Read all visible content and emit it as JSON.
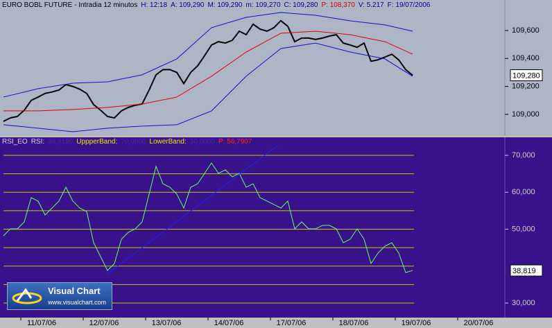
{
  "chart_data": [
    {
      "type": "line",
      "header": [
        "EURO BOBL FUTURE - Intradia 12 minutos",
        "H: 12:18",
        "A: 109,290",
        "M: 109,290",
        "m: 109,270",
        "C: 109,280",
        "P: 108,370",
        "V: 5.217",
        "F: 19/07/2006"
      ],
      "header_colors": [
        "#000000",
        "#00008b",
        "#00008b",
        "#00008b",
        "#00008b",
        "#00008b",
        "#d00000",
        "#00008b",
        "#00008b"
      ],
      "background": "#aeb6c6",
      "xlim": [
        -0.5,
        72.3
      ],
      "ylim": [
        108.846,
        109.818
      ],
      "yticks": [
        {
          "value": 109.0,
          "label": "109,000"
        },
        {
          "value": 109.2,
          "label": "109,200"
        },
        {
          "value": 109.4,
          "label": "109,400"
        },
        {
          "value": 109.6,
          "label": "109,600"
        }
      ],
      "last_label": {
        "value": 109.28,
        "label": "109,280"
      },
      "series": [
        {
          "color": "#000000",
          "width": 2,
          "x": [
            0,
            1,
            2,
            3,
            4,
            5,
            6,
            7,
            8,
            9,
            10,
            11,
            12,
            13,
            14,
            15,
            16,
            17,
            18,
            19,
            20,
            21,
            22,
            23,
            24,
            25,
            26,
            27,
            28,
            29,
            30,
            31,
            32,
            33,
            34,
            35,
            36,
            37,
            38,
            39,
            40,
            41,
            42,
            43,
            44,
            45,
            46,
            47,
            48,
            49,
            50,
            51,
            52,
            53,
            54,
            55,
            56,
            57,
            58,
            59
          ],
          "values": [
            108.95,
            108.975,
            108.985,
            109.03,
            109.1,
            109.124,
            109.15,
            109.16,
            109.174,
            109.213,
            109.2,
            109.18,
            109.15,
            109.07,
            109.03,
            108.985,
            108.975,
            109.025,
            109.05,
            109.065,
            109.075,
            109.174,
            109.283,
            109.32,
            109.32,
            109.3,
            109.22,
            109.3,
            109.347,
            109.42,
            109.496,
            109.52,
            109.51,
            109.53,
            109.595,
            109.57,
            109.645,
            109.61,
            109.595,
            109.62,
            109.67,
            109.63,
            109.52,
            109.546,
            109.546,
            109.536,
            109.546,
            109.56,
            109.57,
            109.51,
            109.496,
            109.48,
            109.51,
            109.38,
            109.39,
            109.41,
            109.43,
            109.39,
            109.32,
            109.28
          ]
        },
        {
          "color": "#1010d0",
          "width": 1,
          "x": [
            0,
            5,
            10,
            15,
            20,
            25,
            30,
            35,
            40,
            45,
            50,
            55,
            59
          ],
          "values": [
            109.124,
            109.184,
            109.223,
            109.233,
            109.283,
            109.397,
            109.62,
            109.694,
            109.729,
            109.709,
            109.669,
            109.64,
            109.595
          ]
        },
        {
          "color": "#e00000",
          "width": 1,
          "x": [
            0,
            5,
            10,
            15,
            20,
            25,
            30,
            35,
            40,
            45,
            50,
            55,
            59
          ],
          "values": [
            109.025,
            109.025,
            109.035,
            109.05,
            109.074,
            109.124,
            109.273,
            109.446,
            109.58,
            109.595,
            109.57,
            109.52,
            109.431
          ]
        },
        {
          "color": "#1010d0",
          "width": 1,
          "x": [
            0,
            5,
            10,
            15,
            20,
            25,
            30,
            35,
            40,
            45,
            50,
            55,
            59
          ],
          "values": [
            108.926,
            108.901,
            108.876,
            108.901,
            108.916,
            108.926,
            109.025,
            109.273,
            109.471,
            109.51,
            109.446,
            109.397,
            109.273
          ]
        }
      ]
    },
    {
      "type": "line",
      "header": [
        "RSI_EO",
        "RSI:",
        "38,8190",
        "UppperBand:",
        "70,0000",
        "LowerBand:",
        "30,0000",
        "P: 56,7907"
      ],
      "header_colors": [
        "#d8d8ff",
        "#d8d8ff",
        "#4a2a9a",
        "#e8e800",
        "#4a2a9a",
        "#e8e800",
        "#4a2a9a",
        "#ff2020"
      ],
      "background": "#38128a",
      "xlim": [
        -0.5,
        72.3
      ],
      "ylim": [
        26.06,
        74.88
      ],
      "yticks": [
        {
          "value": 30,
          "label": "30,000"
        },
        {
          "value": 50,
          "label": "50,000"
        },
        {
          "value": 60,
          "label": "60,000"
        },
        {
          "value": 70,
          "label": "70,000"
        }
      ],
      "levels": [
        70,
        65,
        60,
        55,
        50,
        45,
        40,
        35,
        30
      ],
      "level_color": "#c8c800",
      "last_label": {
        "value": 38.819,
        "label": "38,819"
      },
      "xticks": [
        {
          "value": 5.5,
          "label": "11/07/06"
        },
        {
          "value": 14.5,
          "label": "12/07/06"
        },
        {
          "value": 23.5,
          "label": "13/07/06"
        },
        {
          "value": 32.5,
          "label": "14/07/06"
        },
        {
          "value": 41.5,
          "label": "17/07/06"
        },
        {
          "value": 50.5,
          "label": "18/07/06"
        },
        {
          "value": 59.5,
          "label": "19/07/06"
        },
        {
          "value": 68.5,
          "label": "20/07/06"
        }
      ],
      "series": [
        {
          "color": "#66ff66",
          "width": 1,
          "x": [
            0,
            1,
            2,
            3,
            4,
            5,
            6,
            7,
            8,
            9,
            10,
            11,
            12,
            13,
            14,
            15,
            16,
            17,
            18,
            19,
            20,
            21,
            22,
            23,
            24,
            25,
            26,
            27,
            28,
            29,
            30,
            31,
            32,
            33,
            34,
            35,
            36,
            37,
            38,
            39,
            40,
            41,
            42,
            43,
            44,
            45,
            46,
            47,
            48,
            49,
            50,
            51,
            52,
            53,
            54,
            55,
            56,
            57,
            58,
            59
          ],
          "values": [
            48.22,
            50.09,
            50.09,
            51.97,
            58.54,
            57.61,
            53.85,
            55.73,
            57.61,
            61.36,
            57.61,
            55.73,
            54.79,
            46.34,
            42.58,
            38.83,
            40.7,
            47.28,
            49.15,
            50.09,
            51.97,
            59.48,
            67.0,
            62.3,
            61.36,
            59.48,
            55.73,
            61.36,
            62.3,
            65.12,
            67.93,
            65.12,
            66.06,
            64.18,
            65.12,
            61.36,
            62.3,
            58.54,
            57.61,
            56.67,
            55.73,
            57.61,
            50.09,
            51.97,
            50.09,
            50.09,
            51.03,
            51.03,
            50.09,
            46.34,
            47.28,
            50.09,
            47.28,
            40.7,
            43.52,
            45.4,
            46.34,
            43.52,
            38.26,
            38.819
          ]
        }
      ]
    }
  ],
  "logo": {
    "title": "Visual Chart",
    "url": "www.visualchart.com"
  }
}
